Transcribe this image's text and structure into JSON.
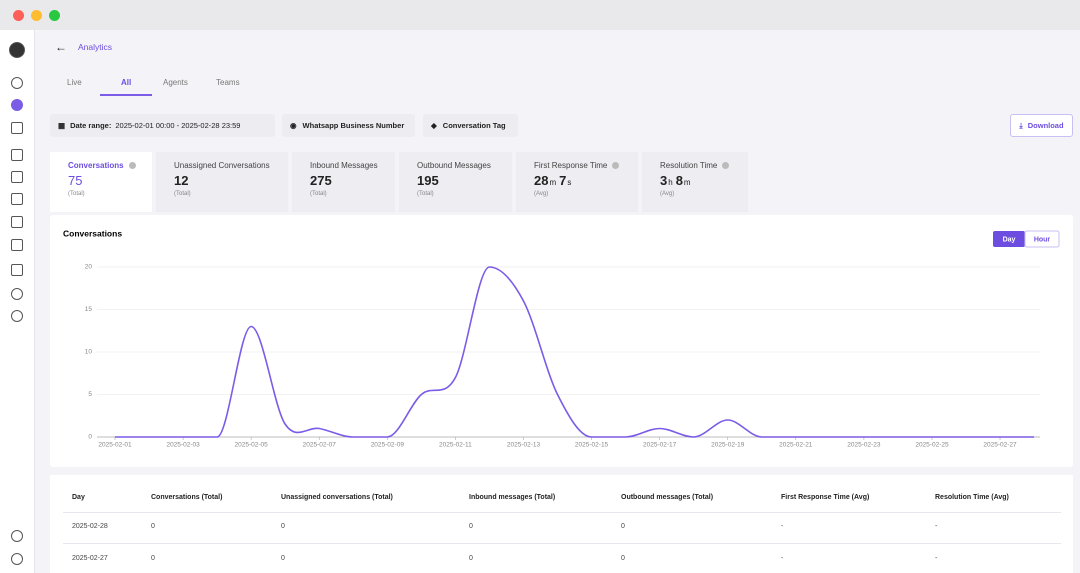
{
  "header": {
    "title": "Analytics"
  },
  "tabs": [
    "Live",
    "All",
    "Agents",
    "Teams"
  ],
  "filters": {
    "date_range_label": "Date range:",
    "date_range": "2025-02-01 00:00 - 2025-02-28 23:59",
    "whatsapp": "Whatsapp Business Number",
    "tag": "Conversation Tag"
  },
  "download": "Download",
  "stats": [
    {
      "label": "Conversations",
      "value": [
        {
          "number": 75
        }
      ],
      "sub": "(Total)"
    },
    {
      "label": "Unassigned Conversations",
      "value": [
        {
          "number": 12
        }
      ],
      "sub": "(Total)"
    },
    {
      "label": "Inbound Messages",
      "value": [
        {
          "number": 275
        }
      ],
      "sub": "(Total)"
    },
    {
      "label": "Outbound Messages",
      "value": [
        {
          "number": 195
        }
      ],
      "sub": "(Total)"
    },
    {
      "label": "First Response Time",
      "value": [
        {
          "number": 28,
          "unit": "m"
        },
        {
          "number": 7,
          "unit": "s"
        }
      ],
      "sub": "(Avg)"
    },
    {
      "label": "Resolution Time",
      "value": [
        {
          "number": 3,
          "unit": "h"
        },
        {
          "number": 8,
          "unit": "m"
        }
      ],
      "sub": "(Avg)"
    }
  ],
  "chart_data": {
    "type": "line",
    "title": "Conversations",
    "toggle": [
      "Day",
      "Hour"
    ],
    "categories": [
      "2025-02-01",
      null,
      "2025-02-03",
      null,
      "2025-02-05",
      null,
      "2025-02-07",
      null,
      "2025-02-09",
      null,
      "2025-02-11",
      null,
      "2025-02-13",
      null,
      "2025-02-15",
      null,
      "2025-02-17",
      null,
      "2025-02-19",
      null,
      "2025-02-21",
      null,
      "2025-02-23",
      null,
      "2025-02-25",
      null,
      "2025-02-27",
      null
    ],
    "values": [
      0,
      0,
      0,
      0,
      13,
      1.5,
      1,
      0,
      0,
      5,
      7,
      20,
      16,
      5,
      0,
      0,
      1,
      0,
      2,
      0,
      0,
      0,
      0,
      0,
      0,
      0,
      0,
      0
    ],
    "color": "#7b5ce6",
    "ylim": [
      0,
      20
    ],
    "yticks": [
      0,
      5,
      10,
      15,
      20
    ],
    "grid": true
  },
  "table": {
    "headers": [
      "Day",
      "Conversations (Total)",
      "Unassigned conversations (Total)",
      "Inbound messages (Total)",
      "Outbound messages (Total)",
      "First Response Time (Avg)",
      "Resolution Time (Avg)"
    ],
    "rows": [
      [
        "2025-02-28",
        "0",
        "0",
        "0",
        "0",
        "-",
        "-"
      ],
      [
        "2025-02-27",
        "0",
        "0",
        "0",
        "0",
        "-",
        "-"
      ]
    ]
  }
}
